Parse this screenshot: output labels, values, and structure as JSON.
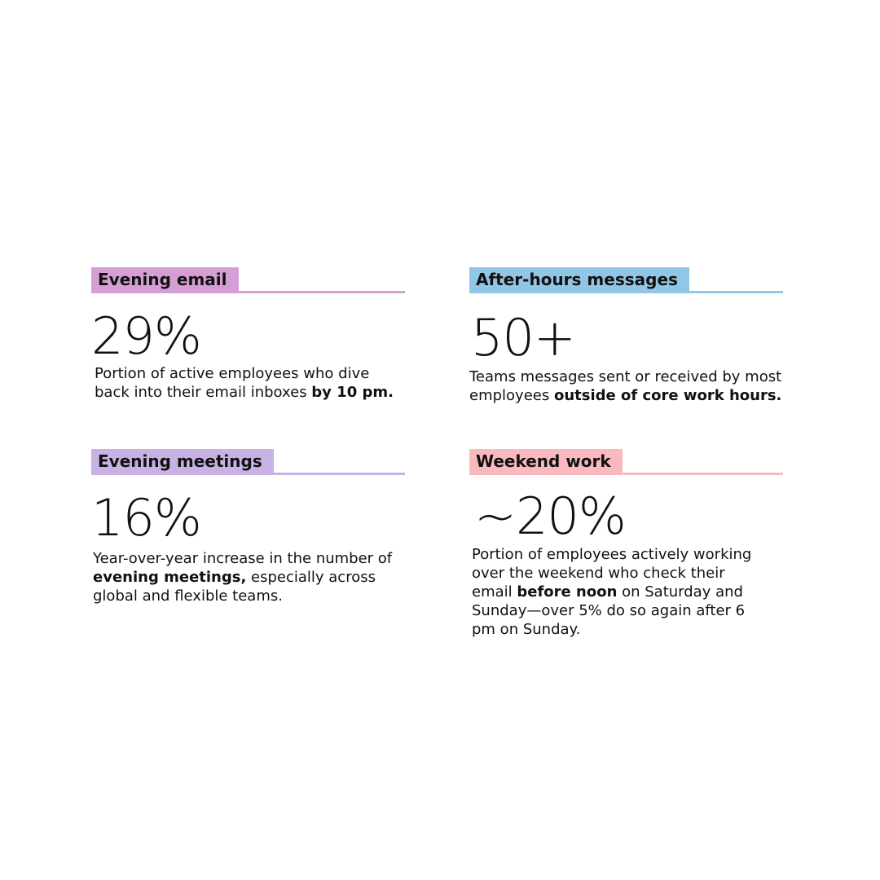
{
  "cards": [
    {
      "title": "Evening email",
      "color": "#d59fd6",
      "stat": "29%",
      "desc_parts": [
        "Portion of active employees who dive back into their email inboxes ",
        "by 10 pm.",
        ""
      ]
    },
    {
      "title": "After-hours messages",
      "color": "#92c6e6",
      "stat": "50+",
      "desc_parts": [
        "Teams messages sent or received by most employees ",
        "outside of core work hours.",
        ""
      ]
    },
    {
      "title": "Evening meetings",
      "color": "#c7b2e4",
      "stat": "16%",
      "desc_parts": [
        "Year-over-year increase in the number of ",
        "evening meetings,",
        " especially across global and flexible teams."
      ]
    },
    {
      "title": "Weekend work",
      "color": "#fab9bf",
      "stat": "~20%",
      "desc_parts": [
        "Portion of employees actively working over the weekend who check their email ",
        "before noon",
        " on Saturday and Sunday—over 5% do so again after 6 pm on Sunday."
      ]
    }
  ]
}
